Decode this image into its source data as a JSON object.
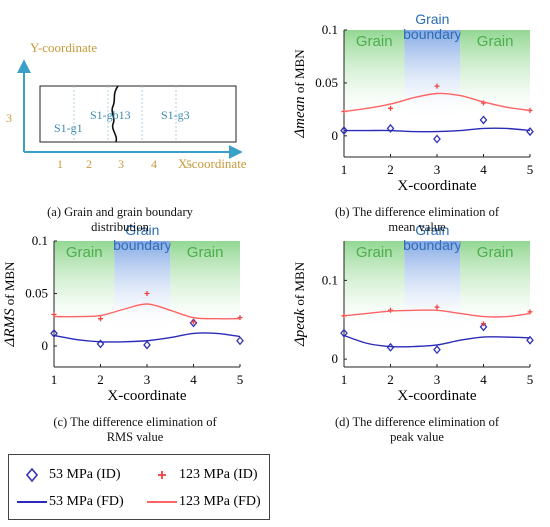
{
  "palette": {
    "blue": "#3232b4",
    "red": "#ff6464",
    "red_marker": "#f04040",
    "blue_line": "#2a2ab8",
    "axis_blue": "#3aa0c8",
    "coord_gold": "#c89a3a",
    "label_teal": "#3a8ab0",
    "grain_green": "#4cae4c",
    "gb_blue": "#2c6db4"
  },
  "panel_a": {
    "y_axis_label": "Y-coordinate",
    "x_axis_label": "X-coordinate",
    "y_tick": "3",
    "x_ticks": [
      "1",
      "2",
      "3",
      "4",
      "5"
    ],
    "region_labels": [
      "S1-g1",
      "S1-gb13",
      "S1-g3"
    ],
    "caption": [
      "(a) Grain and grain boundary",
      "distribution"
    ]
  },
  "chart_data": [
    {
      "id": "b",
      "type": "scatter+line",
      "ylabel_symbol": "Δmean",
      "ylabel_rest": " of MBN",
      "xlabel": "X-coordinate",
      "xlim": [
        1,
        5
      ],
      "ylim": [
        -0.02,
        0.1
      ],
      "x_ticks": [
        1,
        2,
        3,
        4,
        5
      ],
      "y_ticks": [
        0,
        0.05,
        0.1
      ],
      "y_tick_labels": [
        "0",
        "0.05",
        "0.1"
      ],
      "bands": [
        {
          "label": "Grain",
          "from": 1,
          "to": 2.3,
          "type": "grain"
        },
        {
          "label": [
            "Grain",
            "boundary"
          ],
          "from": 2.3,
          "to": 3.5,
          "type": "boundary"
        },
        {
          "label": "Grain",
          "from": 3.5,
          "to": 5,
          "type": "grain"
        }
      ],
      "series": [
        {
          "name": "53 MPa (ID)",
          "kind": "points",
          "color": "blue",
          "x": [
            1,
            2,
            3,
            4,
            5
          ],
          "y": [
            0.005,
            0.007,
            -0.003,
            0.015,
            0.004
          ]
        },
        {
          "name": "123 MPa (ID)",
          "kind": "points",
          "color": "red",
          "x": [
            1,
            2,
            3,
            4,
            5
          ],
          "y": [
            0.023,
            0.026,
            0.047,
            0.031,
            0.024
          ]
        },
        {
          "name": "53 MPa (FD)",
          "kind": "line",
          "color": "blue",
          "x": [
            1,
            1.5,
            2,
            2.5,
            3,
            3.5,
            4,
            4.5,
            5
          ],
          "y": [
            0.005,
            0.005,
            0.005,
            0.004,
            0.004,
            0.005,
            0.007,
            0.007,
            0.005
          ]
        },
        {
          "name": "123 MPa (FD)",
          "kind": "line",
          "color": "red",
          "x": [
            1,
            1.5,
            2,
            2.5,
            3,
            3.5,
            4,
            4.5,
            5
          ],
          "y": [
            0.023,
            0.026,
            0.03,
            0.036,
            0.04,
            0.038,
            0.032,
            0.027,
            0.024
          ]
        }
      ],
      "caption": [
        "(b) The difference elimination of",
        "mean value"
      ]
    },
    {
      "id": "c",
      "type": "scatter+line",
      "ylabel_symbol": "ΔRMS",
      "ylabel_rest": " of MBN",
      "xlabel": "X-coordinate",
      "xlim": [
        1,
        5
      ],
      "ylim": [
        -0.02,
        0.1
      ],
      "x_ticks": [
        1,
        2,
        3,
        4,
        5
      ],
      "y_ticks": [
        0,
        0.05,
        0.1
      ],
      "y_tick_labels": [
        "0",
        "0.05",
        "0.1"
      ],
      "bands": [
        {
          "label": "Grain",
          "from": 1,
          "to": 2.3,
          "type": "grain"
        },
        {
          "label": [
            "Grain",
            "boundary"
          ],
          "from": 2.3,
          "to": 3.5,
          "type": "boundary"
        },
        {
          "label": "Grain",
          "from": 3.5,
          "to": 5,
          "type": "grain"
        }
      ],
      "series": [
        {
          "name": "53 MPa (ID)",
          "kind": "points",
          "color": "blue",
          "x": [
            1,
            2,
            3,
            4,
            5
          ],
          "y": [
            0.012,
            0.002,
            0.001,
            0.022,
            0.005
          ]
        },
        {
          "name": "123 MPa (ID)",
          "kind": "points",
          "color": "red",
          "x": [
            1,
            2,
            3,
            4,
            5
          ],
          "y": [
            0.03,
            0.026,
            0.05,
            0.023,
            0.027
          ]
        },
        {
          "name": "53 MPa (FD)",
          "kind": "line",
          "color": "blue",
          "x": [
            1,
            1.5,
            2,
            2.5,
            3,
            3.5,
            4,
            4.5,
            5
          ],
          "y": [
            0.01,
            0.006,
            0.004,
            0.004,
            0.005,
            0.008,
            0.012,
            0.012,
            0.009
          ]
        },
        {
          "name": "123 MPa (FD)",
          "kind": "line",
          "color": "red",
          "x": [
            1,
            1.5,
            2,
            2.5,
            3,
            3.5,
            4,
            4.5,
            5
          ],
          "y": [
            0.028,
            0.028,
            0.029,
            0.035,
            0.04,
            0.034,
            0.027,
            0.026,
            0.026
          ]
        }
      ],
      "caption": [
        "(c) The difference elimination of",
        "RMS value"
      ]
    },
    {
      "id": "d",
      "type": "scatter+line",
      "ylabel_symbol": "Δpeak",
      "ylabel_rest": " of MBN",
      "xlabel": "X-coordinate",
      "xlim": [
        1,
        5
      ],
      "ylim": [
        -0.01,
        0.15
      ],
      "x_ticks": [
        1,
        2,
        3,
        4,
        5
      ],
      "y_ticks": [
        0,
        0.1
      ],
      "y_tick_labels": [
        "0",
        "0.1"
      ],
      "bands": [
        {
          "label": "Grain",
          "from": 1,
          "to": 2.3,
          "type": "grain"
        },
        {
          "label": [
            "Grain",
            "boundary"
          ],
          "from": 2.3,
          "to": 3.5,
          "type": "boundary"
        },
        {
          "label": "Grain",
          "from": 3.5,
          "to": 5,
          "type": "grain"
        }
      ],
      "series": [
        {
          "name": "53 MPa (ID)",
          "kind": "points",
          "color": "blue",
          "x": [
            1,
            2,
            3,
            4,
            5
          ],
          "y": [
            0.033,
            0.015,
            0.012,
            0.041,
            0.024
          ]
        },
        {
          "name": "123 MPa (ID)",
          "kind": "points",
          "color": "red",
          "x": [
            1,
            2,
            3,
            4,
            5
          ],
          "y": [
            0.055,
            0.062,
            0.066,
            0.045,
            0.06
          ]
        },
        {
          "name": "53 MPa (FD)",
          "kind": "line",
          "color": "blue",
          "x": [
            1,
            1.5,
            2,
            2.5,
            3,
            3.5,
            4,
            4.5,
            5
          ],
          "y": [
            0.03,
            0.02,
            0.016,
            0.016,
            0.018,
            0.024,
            0.028,
            0.028,
            0.027
          ]
        },
        {
          "name": "123 MPa (FD)",
          "kind": "line",
          "color": "red",
          "x": [
            1,
            1.5,
            2,
            2.5,
            3,
            3.5,
            4,
            4.5,
            5
          ],
          "y": [
            0.055,
            0.058,
            0.061,
            0.062,
            0.062,
            0.058,
            0.054,
            0.054,
            0.058
          ]
        }
      ],
      "caption": [
        "(d) The difference elimination of",
        "peak value"
      ]
    }
  ],
  "legend": [
    {
      "label": "53 MPa (ID)",
      "kind": "points",
      "color": "blue"
    },
    {
      "label": "123 MPa (ID)",
      "kind": "points",
      "color": "red"
    },
    {
      "label": "53 MPa (FD)",
      "kind": "line",
      "color": "blue"
    },
    {
      "label": "123 MPa (FD)",
      "kind": "line",
      "color": "red"
    }
  ]
}
